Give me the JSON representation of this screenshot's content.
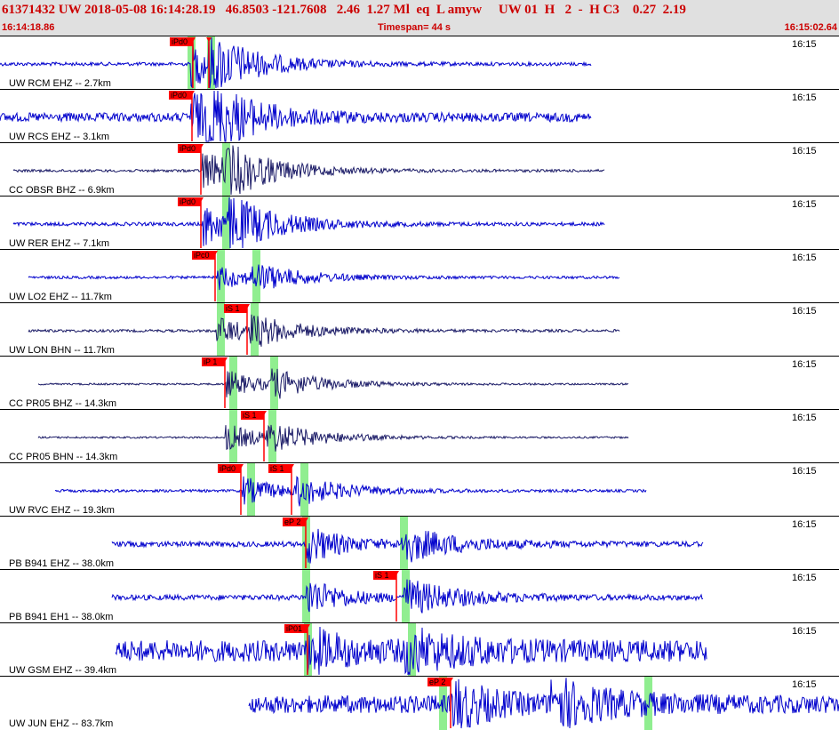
{
  "header": {
    "event_line": "61371432 UW 2018-05-08 16:14:28.19   46.8503 -121.7608   2.46  1.27 Ml  eq  L amyw     UW 01  H   2  -  H C3    0.27  2.19",
    "start_time": "16:14:18.86",
    "timespan": "Timespan=  44 s",
    "end_time": "16:15:02.64"
  },
  "colors": {
    "header_bg": "#e0e0e0",
    "header_text": "#cc0000",
    "trace_ehz": "#0000cc",
    "trace_bh": "#1a1a66",
    "pick_bg": "#ff0000",
    "window_green": "#90ee90"
  },
  "panels": [
    {
      "label": "UW RCM EHZ -- 2.7km",
      "time": "16:15",
      "color": "#0000cc",
      "start": 0,
      "end": 665,
      "onset": 215,
      "amp": 26,
      "noise": 2,
      "s_onset": 235,
      "windows": [
        211,
        233
      ],
      "picks": [
        {
          "text": "iPd0",
          "x": 191
        },
        {
          "text": "",
          "x": 233
        }
      ]
    },
    {
      "label": "UW RCS EHZ -- 3.1km",
      "time": "16:15",
      "color": "#0000cc",
      "start": 0,
      "end": 665,
      "onset": 215,
      "amp": 30,
      "noise": 5,
      "s_onset": 232,
      "windows": [],
      "picks": [
        {
          "text": "iPd0",
          "x": 190
        }
      ]
    },
    {
      "label": "CC OBSR BHZ -- 6.9km",
      "time": "16:15",
      "color": "#1a1a66",
      "start": 15,
      "end": 680,
      "onset": 228,
      "amp": 24,
      "noise": 1.5,
      "s_onset": 255,
      "windows": [
        250
      ],
      "picks": [
        {
          "text": "iPd0",
          "x": 200
        }
      ]
    },
    {
      "label": "UW RER EHZ -- 7.1km",
      "time": "16:15",
      "color": "#0000cc",
      "start": 15,
      "end": 680,
      "onset": 228,
      "amp": 26,
      "noise": 2,
      "s_onset": 258,
      "windows": [
        250
      ],
      "picks": [
        {
          "text": "iPd0",
          "x": 200
        }
      ]
    },
    {
      "label": "UW LO2 EHZ -- 11.7km",
      "time": "16:15",
      "color": "#0000cc",
      "start": 32,
      "end": 697,
      "onset": 245,
      "amp": 14,
      "noise": 1.5,
      "s_onset": 284,
      "windows": [
        244,
        284
      ],
      "picks": [
        {
          "text": "iPc0",
          "x": 216
        }
      ]
    },
    {
      "label": "UW LON BHN -- 11.7km",
      "time": "16:15",
      "color": "#1a1a66",
      "start": 32,
      "end": 697,
      "onset": 244,
      "amp": 16,
      "noise": 1.5,
      "s_onset": 282,
      "windows": [
        244,
        282
      ],
      "picks": [
        {
          "text": "iS 1",
          "x": 252
        }
      ]
    },
    {
      "label": "CC PR05 BHZ -- 14.3km",
      "time": "16:15",
      "color": "#1a1a66",
      "start": 43,
      "end": 707,
      "onset": 254,
      "amp": 16,
      "noise": 1,
      "s_onset": 304,
      "windows": [
        258,
        304
      ],
      "picks": [
        {
          "text": "iP 1",
          "x": 227
        }
      ]
    },
    {
      "label": "CC PR05 BHN -- 14.3km",
      "time": "16:15",
      "color": "#1a1a66",
      "start": 43,
      "end": 707,
      "onset": 254,
      "amp": 16,
      "noise": 1,
      "s_onset": 300,
      "windows": [
        258,
        302
      ],
      "picks": [
        {
          "text": "iS 1",
          "x": 271
        }
      ]
    },
    {
      "label": "UW RVC EHZ -- 19.3km",
      "time": "16:15",
      "color": "#0000cc",
      "start": 62,
      "end": 727,
      "onset": 273,
      "amp": 16,
      "noise": 1.5,
      "s_onset": 332,
      "windows": [
        278,
        338
      ],
      "picks": [
        {
          "text": "iPd0",
          "x": 245
        },
        {
          "text": "iS 1",
          "x": 302
        }
      ]
    },
    {
      "label": "PB B941 EHZ -- 38.0km",
      "time": "16:15",
      "color": "#0000cc",
      "start": 126,
      "end": 791,
      "onset": 345,
      "amp": 22,
      "noise": 3,
      "s_onset": 452,
      "windows": [
        340,
        450
      ],
      "picks": [
        {
          "text": "eP 2",
          "x": 318
        }
      ]
    },
    {
      "label": "PB B941 EH1 -- 38.0km",
      "time": "16:15",
      "color": "#0000cc",
      "start": 126,
      "end": 791,
      "onset": 345,
      "amp": 22,
      "noise": 3,
      "s_onset": 455,
      "windows": [
        340,
        452
      ],
      "picks": [
        {
          "text": "iS 1",
          "x": 420
        }
      ]
    },
    {
      "label": "UW GSM EHZ -- 39.4km",
      "time": "16:15",
      "color": "#0000cc",
      "start": 130,
      "end": 795,
      "onset": 345,
      "amp": 22,
      "noise": 12,
      "s_onset": 456,
      "windows": [
        342,
        459
      ],
      "picks": [
        {
          "text": "iP01",
          "x": 320
        }
      ]
    },
    {
      "label": "UW JUN EHZ -- 83.7km",
      "time": "16:15",
      "color": "#0000cc",
      "start": 280,
      "end": 944,
      "onset": 508,
      "amp": 28,
      "noise": 10,
      "s_onset": 620,
      "windows": [
        494,
        725
      ],
      "picks": [
        {
          "text": "eP 2",
          "x": 481
        }
      ]
    }
  ]
}
